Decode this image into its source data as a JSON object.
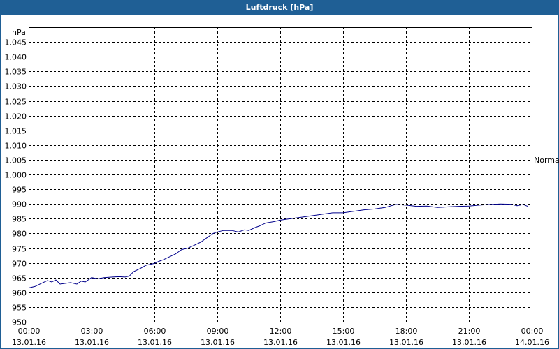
{
  "window": {
    "title": "Luftdruck [hPa]"
  },
  "chart_data": {
    "type": "line",
    "title": "Luftdruck [hPa]",
    "ylabel": "hPa",
    "ylim": [
      950,
      1050
    ],
    "xlim_hours": [
      0,
      24
    ],
    "grid": true,
    "y_ticks": [
      {
        "v": 950,
        "label": "950"
      },
      {
        "v": 955,
        "label": "955"
      },
      {
        "v": 960,
        "label": "960"
      },
      {
        "v": 965,
        "label": "965"
      },
      {
        "v": 970,
        "label": "970"
      },
      {
        "v": 975,
        "label": "975"
      },
      {
        "v": 980,
        "label": "980"
      },
      {
        "v": 985,
        "label": "985"
      },
      {
        "v": 990,
        "label": "990"
      },
      {
        "v": 995,
        "label": "995"
      },
      {
        "v": 1000,
        "label": "1.000"
      },
      {
        "v": 1005,
        "label": "1.005"
      },
      {
        "v": 1010,
        "label": "1.010"
      },
      {
        "v": 1015,
        "label": "1.015"
      },
      {
        "v": 1020,
        "label": "1.020"
      },
      {
        "v": 1025,
        "label": "1.025"
      },
      {
        "v": 1030,
        "label": "1.030"
      },
      {
        "v": 1035,
        "label": "1.035"
      },
      {
        "v": 1040,
        "label": "1.040"
      },
      {
        "v": 1045,
        "label": "1.045"
      }
    ],
    "x_ticks": [
      {
        "h": 0,
        "time": "00:00",
        "date": "13.01.16"
      },
      {
        "h": 3,
        "time": "03:00",
        "date": "13.01.16"
      },
      {
        "h": 6,
        "time": "06:00",
        "date": "13.01.16"
      },
      {
        "h": 9,
        "time": "09:00",
        "date": "13.01.16"
      },
      {
        "h": 12,
        "time": "12:00",
        "date": "13.01.16"
      },
      {
        "h": 15,
        "time": "15:00",
        "date": "13.01.16"
      },
      {
        "h": 18,
        "time": "18:00",
        "date": "13.01.16"
      },
      {
        "h": 21,
        "time": "21:00",
        "date": "13.01.16"
      },
      {
        "h": 24,
        "time": "00:00",
        "date": "14.01.16"
      }
    ],
    "reference_line": {
      "label": "Normal",
      "value": 1005
    },
    "series": [
      {
        "color": "#00008b",
        "x": [
          0,
          0.3,
          0.6,
          0.9,
          1.1,
          1.3,
          1.5,
          1.7,
          2.0,
          2.3,
          2.5,
          2.7,
          2.9,
          3.0,
          3.3,
          3.6,
          4.0,
          4.3,
          4.6,
          4.8,
          5.0,
          5.3,
          5.6,
          5.8,
          6.0,
          6.2,
          6.4,
          6.7,
          7.0,
          7.3,
          7.6,
          7.9,
          8.2,
          8.5,
          8.8,
          9.0,
          9.3,
          9.7,
          10.0,
          10.3,
          10.5,
          10.8,
          11.0,
          11.3,
          11.7,
          12.0,
          12.5,
          13.0,
          13.5,
          14.0,
          14.5,
          15.0,
          15.5,
          16.0,
          16.5,
          17.0,
          17.5,
          18.0,
          18.5,
          19.0,
          19.5,
          20.0,
          20.5,
          21.0,
          21.5,
          22.0,
          22.5,
          23.0,
          23.3,
          23.6,
          23.8
        ],
        "y": [
          961.5,
          962.0,
          963.0,
          964.0,
          963.5,
          964.2,
          962.8,
          963.0,
          963.3,
          962.8,
          963.8,
          963.5,
          964.5,
          965.0,
          964.6,
          965.0,
          965.2,
          965.3,
          965.2,
          965.5,
          967.0,
          968.0,
          969.2,
          969.5,
          969.8,
          970.5,
          971.0,
          972.0,
          973.0,
          974.5,
          975.0,
          976.0,
          977.0,
          978.5,
          980.0,
          980.5,
          981.0,
          981.0,
          980.5,
          981.2,
          981.0,
          982.0,
          982.5,
          983.5,
          984.0,
          984.5,
          985.0,
          985.5,
          986.0,
          986.5,
          987.0,
          987.0,
          987.5,
          988.0,
          988.3,
          988.8,
          989.8,
          989.6,
          989.2,
          989.3,
          988.8,
          989.0,
          989.2,
          989.3,
          989.6,
          989.8,
          990.0,
          989.9,
          989.4,
          989.8,
          989.2
        ]
      }
    ]
  }
}
